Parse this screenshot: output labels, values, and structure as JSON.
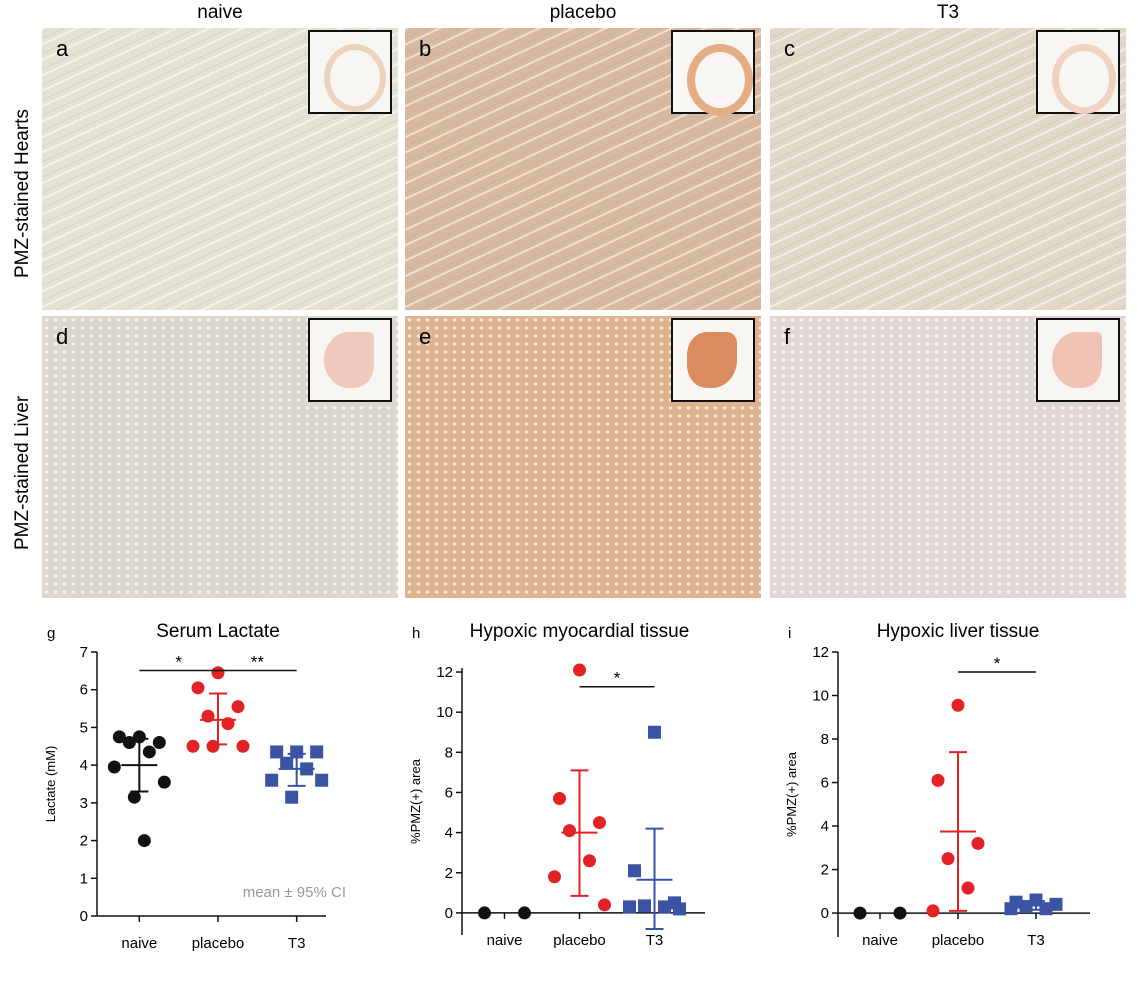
{
  "column_headers": [
    "naive",
    "placebo",
    "T3"
  ],
  "row_labels": [
    "PMZ-stained Hearts",
    "PMZ-stained Liver"
  ],
  "panel_letters": [
    "a",
    "b",
    "c",
    "d",
    "e",
    "f"
  ],
  "chart_data": [
    {
      "type": "dotplot",
      "letter": "g",
      "title": "Serum Lactate",
      "y_label": "Lactate (mM)",
      "categories": [
        "naive",
        "placebo",
        "T3"
      ],
      "ylim": [
        0,
        7
      ],
      "yticks": [
        0,
        1,
        2,
        3,
        4,
        5,
        6,
        7
      ],
      "groups": [
        {
          "color": "#111111",
          "marker": "circle",
          "values": [
            4.75,
            4.75,
            4.6,
            4.6,
            4.35,
            3.95,
            3.55,
            3.15,
            2.0
          ],
          "mean": 4.0,
          "ci": [
            3.3,
            4.7
          ]
        },
        {
          "color": "#e32226",
          "marker": "circle",
          "values": [
            6.45,
            6.05,
            5.55,
            5.3,
            5.1,
            4.5,
            4.5,
            4.5
          ],
          "mean": 5.2,
          "ci": [
            4.55,
            5.9
          ]
        },
        {
          "color": "#3a53a4",
          "marker": "square",
          "values": [
            4.35,
            4.35,
            4.35,
            4.05,
            3.9,
            3.6,
            3.6,
            3.15
          ],
          "mean": 3.9,
          "ci": [
            3.45,
            4.3
          ]
        }
      ],
      "significance": [
        {
          "pair": [
            0,
            1
          ],
          "label": "*"
        },
        {
          "pair": [
            1,
            2
          ],
          "label": "**"
        }
      ],
      "note": "mean ± 95% CI"
    },
    {
      "type": "dotplot",
      "letter": "h",
      "title": "Hypoxic myocardial tissue",
      "y_label": "%PMZ(+) area",
      "categories": [
        "naive",
        "placebo",
        "T3"
      ],
      "ylim": [
        -1.1,
        12.2
      ],
      "yticks": [
        0,
        2,
        4,
        6,
        8,
        10,
        12
      ],
      "groups": [
        {
          "color": "#111111",
          "marker": "circle",
          "values": [
            0,
            0
          ]
        },
        {
          "color": "#e32226",
          "marker": "circle",
          "values": [
            12.1,
            5.7,
            4.5,
            4.1,
            2.6,
            1.8,
            0.4
          ],
          "mean": 4.0,
          "ci": [
            0.85,
            7.1
          ]
        },
        {
          "color": "#3a53a4",
          "marker": "square",
          "values": [
            9.0,
            2.1,
            0.5,
            0.35,
            0.3,
            0.3,
            0.2
          ],
          "mean": 1.65,
          "ci": [
            -0.8,
            4.2
          ]
        }
      ],
      "significance": [
        {
          "pair": [
            1,
            2
          ],
          "label": "*"
        }
      ]
    },
    {
      "type": "dotplot",
      "letter": "i",
      "title": "Hypoxic liver tissue",
      "y_label": "%PMZ(+) area",
      "categories": [
        "naive",
        "placebo",
        "T3"
      ],
      "ylim": [
        -1.1,
        12
      ],
      "yticks": [
        0,
        2,
        4,
        6,
        8,
        10,
        12
      ],
      "groups": [
        {
          "color": "#111111",
          "marker": "circle",
          "values": [
            0,
            0
          ]
        },
        {
          "color": "#e32226",
          "marker": "circle",
          "values": [
            9.55,
            6.1,
            3.2,
            2.5,
            1.15,
            0.1
          ],
          "mean": 3.75,
          "ci": [
            0.1,
            7.4
          ]
        },
        {
          "color": "#3a53a4",
          "marker": "square",
          "values": [
            0.6,
            0.5,
            0.4,
            0.3,
            0.2,
            0.2
          ],
          "mean": 0.35,
          "ci": [
            0.15,
            0.55
          ]
        }
      ],
      "significance": [
        {
          "pair": [
            1,
            2
          ],
          "label": "*"
        }
      ]
    }
  ]
}
